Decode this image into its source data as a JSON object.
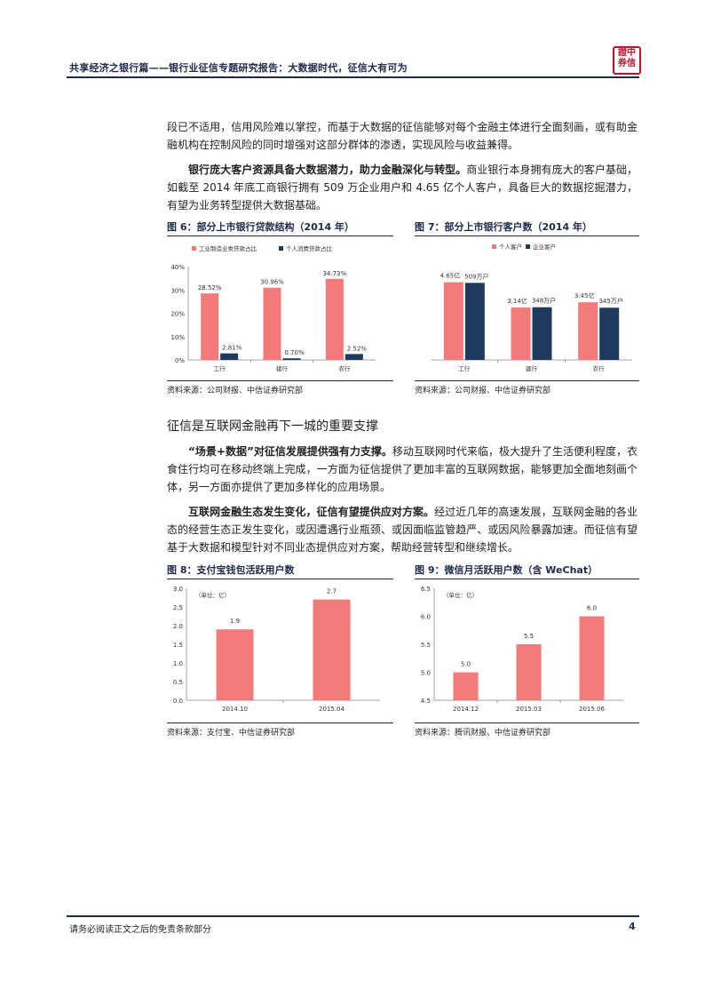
{
  "header": {
    "title": "共享经济之银行篇——银行业征信专题研究报告：大数据时代，征信大有可为",
    "logo_text": "中信证券"
  },
  "paragraphs": {
    "p1": "段已不适用，信用风险难以掌控，而基于大数据的征信能够对每个金融主体进行全面刻画，或有助金融机构在控制风险的同时增强对这部分群体的渗透，实现风险与收益兼得。",
    "p2_bold": "银行庞大客户资源具备大数据潜力，助力金融深化与转型。",
    "p2_rest": "商业银行本身拥有庞大的客户基础，如截至 2014 年底工商银行拥有 509 万企业用户和 4.65 亿个人客户，具备巨大的数据挖掘潜力，有望为业务转型提供大数据基础。",
    "section_title": "征信是互联网金融再下一城的重要支撑",
    "p3_bold": "“场景+数据”对征信发展提供强有力支撑。",
    "p3_rest": "移动互联网时代来临，极大提升了生活便利程度，衣食住行均可在移动终端上完成，一方面为征信提供了更加丰富的互联网数据，能够更加全面地刻画个体，另一方面亦提供了更加多样化的应用场景。",
    "p4_bold": "互联网金融生态发生变化，征信有望提供应对方案。",
    "p4_rest": "经过近几年的高速发展，互联网金融的各业态的经营生态正发生变化，或因遭遇行业瓶颈、或因面临监管趋严、或因风险暴露加速。而征信有望基于大数据和模型针对不同业态提供应对方案，帮助经营转型和继续增长。"
  },
  "figures": {
    "fig6": {
      "title": "图 6：部分上市银行贷款结构（2014 年）",
      "source": "资料来源：公司财报、中信证券研究部"
    },
    "fig7": {
      "title": "图 7：部分上市银行客户数（2014 年）",
      "source": "资料来源：公司财报、中信证券研究部"
    },
    "fig8": {
      "title": "图 8：支付宝钱包活跃用户数",
      "source": "资料来源：支付宝、中信证券研究部"
    },
    "fig9": {
      "title": "图 9：微信月活跃用户数（含 WeChat）",
      "source": "资料来源：腾讯财报、中信证券研究部"
    }
  },
  "footer": {
    "disclaimer": "请务必阅读正文之后的免责条款部分",
    "page": "4"
  },
  "colors": {
    "pink": "#f47a7a",
    "navy": "#1f3a5f",
    "rule": "#1f2a4a"
  },
  "chart_data": [
    {
      "type": "bar",
      "title": "图 6：部分上市银行贷款结构（2014 年）",
      "categories": [
        "工行",
        "建行",
        "农行"
      ],
      "series": [
        {
          "name": "工业制造业类贷款占比",
          "values": [
            28.52,
            30.96,
            34.73
          ],
          "labels": [
            "28.52%",
            "30.96%",
            "34.73%"
          ]
        },
        {
          "name": "个人消费贷款占比",
          "values": [
            2.81,
            0.7,
            2.52
          ],
          "labels": [
            "2.81%",
            "0.70%",
            "2.52%"
          ]
        }
      ],
      "ylim": [
        0,
        40
      ],
      "yticks": [
        "0%",
        "10%",
        "20%",
        "30%",
        "40%"
      ],
      "legend": "top-left"
    },
    {
      "type": "bar",
      "title": "图 7：部分上市银行客户数（2014 年）",
      "categories": [
        "工行",
        "建行",
        "农行"
      ],
      "series": [
        {
          "name": "个人客户",
          "values": [
            4.65,
            3.14,
            3.45
          ],
          "labels": [
            "4.65亿",
            "3.14亿",
            "3.45亿"
          ]
        },
        {
          "name": "企业客户",
          "values": [
            509,
            348,
            345
          ],
          "labels": [
            "509万户",
            "348万户",
            "345万户"
          ]
        }
      ],
      "legend": "top-left"
    },
    {
      "type": "bar",
      "title": "图 8：支付宝钱包活跃用户数",
      "unit_note": "（单位：亿）",
      "categories": [
        "2014.10",
        "2015.04"
      ],
      "values": [
        1.9,
        2.7
      ],
      "labels": [
        "1.9",
        "2.7"
      ],
      "ylim": [
        0,
        3.0
      ],
      "yticks": [
        "0.0",
        "0.5",
        "1.0",
        "1.5",
        "2.0",
        "2.5",
        "3.0"
      ]
    },
    {
      "type": "bar",
      "title": "图 9：微信月活跃用户数（含 WeChat）",
      "unit_note": "（单位：亿）",
      "categories": [
        "2014.12",
        "2015.03",
        "2015.06"
      ],
      "values": [
        5.0,
        5.5,
        6.0
      ],
      "labels": [
        "5.0",
        "5.5",
        "6.0"
      ],
      "ylim": [
        4.5,
        6.5
      ],
      "yticks": [
        "4.5",
        "5.0",
        "5.5",
        "6.0",
        "6.5"
      ]
    }
  ]
}
